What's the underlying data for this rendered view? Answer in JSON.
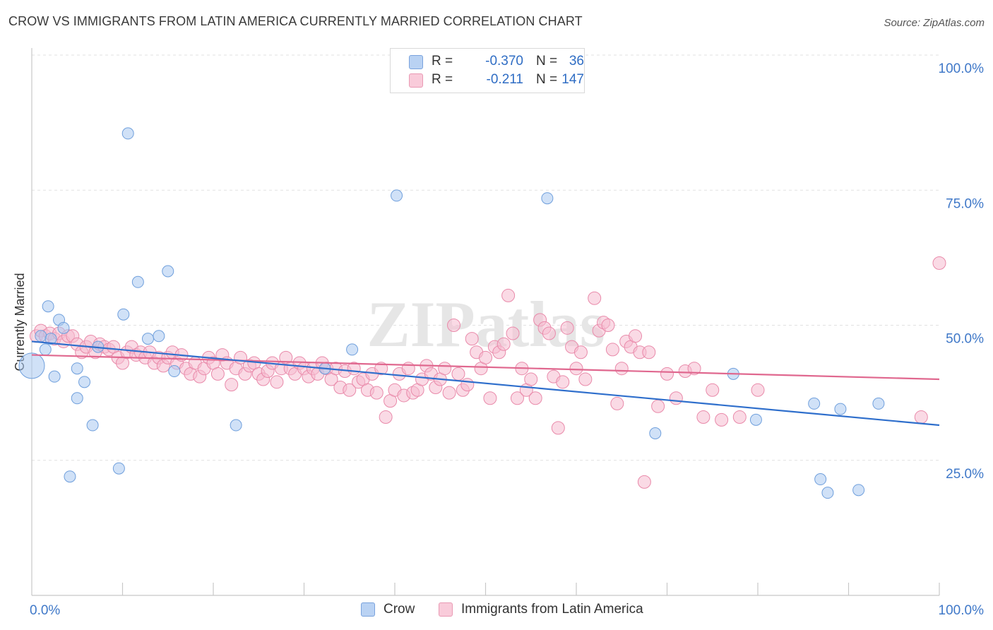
{
  "title": "CROW VS IMMIGRANTS FROM LATIN AMERICA CURRENTLY MARRIED CORRELATION CHART",
  "source": "Source: ZipAtlas.com",
  "watermark": "ZIPatlas",
  "legend_top": [
    {
      "r_label": "R =",
      "r_value": "-0.370",
      "n_label": "N =",
      "n_value": "36"
    },
    {
      "r_label": "R =",
      "r_value": "-0.211",
      "n_label": "N =",
      "n_value": "147"
    }
  ],
  "legend_bottom": [
    {
      "label": "Crow"
    },
    {
      "label": "Immigrants from Latin America"
    }
  ],
  "colors": {
    "crow_fill": "#a9c8f0",
    "crow_stroke": "#6f9fdc",
    "crow_line": "#2f6fcc",
    "latin_fill": "#f6bcd0",
    "latin_stroke": "#e98aaa",
    "latin_line": "#e0688f",
    "tick_label": "#3f78c8",
    "grid": "#e1e1e1"
  },
  "chart_data": {
    "type": "scatter",
    "title": "CROW VS IMMIGRANTS FROM LATIN AMERICA CURRENTLY MARRIED CORRELATION CHART",
    "xlabel": "",
    "ylabel": "Currently Married",
    "x_tick_labels": [
      "0.0%",
      "100.0%"
    ],
    "y_tick_labels": [
      "100.0%",
      "75.0%",
      "50.0%",
      "25.0%"
    ],
    "xlim": [
      0,
      100
    ],
    "ylim": [
      0,
      100
    ],
    "grid": true,
    "legend_position": "bottom",
    "series": [
      {
        "name": "Crow",
        "points": [
          [
            0,
            42.5
          ],
          [
            1.5,
            45.5
          ],
          [
            1.8,
            53.5
          ],
          [
            2.5,
            40.5
          ],
          [
            3,
            51
          ],
          [
            3.5,
            49.5
          ],
          [
            4.2,
            22
          ],
          [
            5,
            42
          ],
          [
            5,
            36.5
          ],
          [
            5.8,
            39.5
          ],
          [
            6.7,
            31.5
          ],
          [
            7.3,
            46
          ],
          [
            9.6,
            23.5
          ],
          [
            10.1,
            52
          ],
          [
            10.6,
            85.5
          ],
          [
            11.7,
            58
          ],
          [
            12.8,
            47.5
          ],
          [
            14,
            48
          ],
          [
            15,
            60
          ],
          [
            15.7,
            41.5
          ],
          [
            22.5,
            31.5
          ],
          [
            32.3,
            42
          ],
          [
            35.3,
            45.5
          ],
          [
            40.2,
            74
          ],
          [
            56.8,
            73.5
          ],
          [
            68.7,
            30
          ],
          [
            77.3,
            41
          ],
          [
            79.8,
            32.5
          ],
          [
            86.2,
            35.5
          ],
          [
            86.9,
            21.5
          ],
          [
            87.7,
            19
          ],
          [
            89.1,
            34.5
          ],
          [
            91.1,
            19.5
          ],
          [
            93.3,
            35.5
          ],
          [
            1,
            48
          ],
          [
            2.1,
            47.5
          ]
        ],
        "trend": {
          "x": [
            0,
            100
          ],
          "y": [
            47.0,
            31.5
          ]
        }
      },
      {
        "name": "Immigrants from Latin America",
        "points": [
          [
            0.5,
            48
          ],
          [
            1,
            49
          ],
          [
            1.5,
            48
          ],
          [
            2,
            48.5
          ],
          [
            2.5,
            47.5
          ],
          [
            3,
            48.5
          ],
          [
            3.5,
            47
          ],
          [
            4,
            48
          ],
          [
            4.5,
            48
          ],
          [
            5,
            46.5
          ],
          [
            5.5,
            45
          ],
          [
            6,
            46
          ],
          [
            6.5,
            47
          ],
          [
            7,
            45
          ],
          [
            7.5,
            46.5
          ],
          [
            8,
            46
          ],
          [
            8.5,
            45.5
          ],
          [
            9,
            46
          ],
          [
            9.5,
            44
          ],
          [
            10,
            43
          ],
          [
            10.5,
            45
          ],
          [
            11,
            46
          ],
          [
            11.5,
            44.5
          ],
          [
            12,
            45
          ],
          [
            12.5,
            44
          ],
          [
            13,
            45
          ],
          [
            13.5,
            43
          ],
          [
            14,
            44
          ],
          [
            14.5,
            42.5
          ],
          [
            15,
            44
          ],
          [
            15.5,
            45
          ],
          [
            16,
            43
          ],
          [
            16.5,
            44.5
          ],
          [
            17,
            42
          ],
          [
            17.5,
            41
          ],
          [
            18,
            43
          ],
          [
            18.5,
            40.5
          ],
          [
            19,
            42
          ],
          [
            19.5,
            44
          ],
          [
            20,
            43
          ],
          [
            20.5,
            41
          ],
          [
            21,
            44.5
          ],
          [
            21.5,
            43
          ],
          [
            22,
            39
          ],
          [
            22.5,
            42
          ],
          [
            23,
            44
          ],
          [
            23.5,
            41
          ],
          [
            24,
            42.5
          ],
          [
            24.5,
            43
          ],
          [
            25,
            41
          ],
          [
            25.5,
            40
          ],
          [
            26,
            41.5
          ],
          [
            26.5,
            43
          ],
          [
            27,
            39.5
          ],
          [
            27.5,
            42
          ],
          [
            28,
            44
          ],
          [
            28.5,
            42
          ],
          [
            29,
            41
          ],
          [
            29.5,
            43
          ],
          [
            30,
            42
          ],
          [
            30.5,
            40.5
          ],
          [
            31,
            42
          ],
          [
            31.5,
            41
          ],
          [
            32,
            43
          ],
          [
            32.5,
            42
          ],
          [
            33,
            40
          ],
          [
            33.5,
            42
          ],
          [
            34,
            38.5
          ],
          [
            34.5,
            41.5
          ],
          [
            35,
            38
          ],
          [
            35.5,
            42
          ],
          [
            36,
            39.5
          ],
          [
            36.5,
            40
          ],
          [
            37,
            38
          ],
          [
            37.5,
            41
          ],
          [
            38,
            37.5
          ],
          [
            38.5,
            42
          ],
          [
            39,
            33
          ],
          [
            39.5,
            36
          ],
          [
            40,
            38
          ],
          [
            40.5,
            41
          ],
          [
            41,
            37
          ],
          [
            41.5,
            42
          ],
          [
            42,
            37.5
          ],
          [
            42.5,
            38
          ],
          [
            43,
            40
          ],
          [
            43.5,
            42.5
          ],
          [
            44,
            41
          ],
          [
            44.5,
            38.5
          ],
          [
            45,
            40
          ],
          [
            45.5,
            42
          ],
          [
            46,
            37.5
          ],
          [
            46.5,
            50
          ],
          [
            47,
            41
          ],
          [
            47.5,
            38
          ],
          [
            48,
            39
          ],
          [
            48.5,
            47.5
          ],
          [
            49,
            45
          ],
          [
            49.5,
            42
          ],
          [
            50,
            44
          ],
          [
            50.5,
            36.5
          ],
          [
            51,
            46
          ],
          [
            51.5,
            45
          ],
          [
            52,
            46.5
          ],
          [
            52.5,
            55.5
          ],
          [
            53,
            48.5
          ],
          [
            53.5,
            36.5
          ],
          [
            54,
            42
          ],
          [
            54.5,
            38
          ],
          [
            55,
            40
          ],
          [
            55.5,
            36.5
          ],
          [
            56,
            51
          ],
          [
            56.5,
            49.5
          ],
          [
            57,
            48.5
          ],
          [
            57.5,
            40.5
          ],
          [
            58,
            31
          ],
          [
            58.5,
            39.5
          ],
          [
            59,
            49.5
          ],
          [
            59.5,
            46
          ],
          [
            60,
            42
          ],
          [
            60.5,
            45
          ],
          [
            61,
            40
          ],
          [
            62,
            55
          ],
          [
            62.5,
            49
          ],
          [
            63,
            50.5
          ],
          [
            63.5,
            50
          ],
          [
            64,
            45.5
          ],
          [
            64.5,
            35.5
          ],
          [
            65,
            42
          ],
          [
            65.5,
            47
          ],
          [
            66,
            46
          ],
          [
            66.5,
            48
          ],
          [
            67,
            45
          ],
          [
            67.5,
            21
          ],
          [
            68,
            45
          ],
          [
            69,
            35
          ],
          [
            70,
            41
          ],
          [
            71,
            36.5
          ],
          [
            72,
            41.5
          ],
          [
            73,
            42
          ],
          [
            74,
            33
          ],
          [
            75,
            38
          ],
          [
            76,
            32.5
          ],
          [
            78,
            33
          ],
          [
            80,
            38
          ],
          [
            98,
            33
          ],
          [
            100,
            61.5
          ]
        ],
        "trend": {
          "x": [
            0,
            100
          ],
          "y": [
            44.5,
            40.0
          ]
        }
      }
    ]
  }
}
